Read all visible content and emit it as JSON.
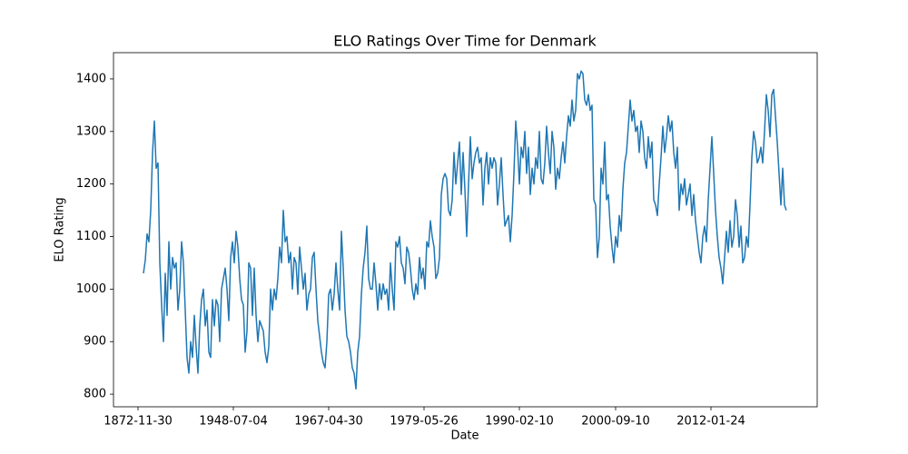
{
  "chart_data": {
    "type": "line",
    "title": "ELO Ratings Over Time for Denmark",
    "xlabel": "Date",
    "ylabel": "ELO Rating",
    "x": [
      6,
      8,
      10,
      12,
      14,
      16,
      18,
      20,
      22,
      24,
      26,
      28,
      30,
      32,
      34,
      36,
      38,
      40,
      42,
      44,
      46,
      48,
      50,
      52,
      54,
      56,
      58,
      60,
      62,
      64,
      66,
      68,
      70,
      72,
      74,
      76,
      78,
      80,
      82,
      84,
      86,
      88,
      90,
      92,
      94,
      96,
      98,
      100,
      102,
      104,
      106,
      108,
      110,
      112,
      114,
      116,
      118,
      120,
      122,
      124,
      126,
      128,
      130,
      132,
      134,
      136,
      138,
      140,
      142,
      144,
      146,
      148,
      150,
      152,
      154,
      156,
      158,
      160,
      162,
      164,
      166,
      168,
      170,
      172,
      174,
      176,
      178,
      180,
      182,
      184,
      186,
      188,
      190,
      192,
      194,
      196,
      198,
      200,
      202,
      204,
      206,
      208,
      210,
      212,
      214,
      216,
      218,
      220,
      222,
      224,
      226,
      228,
      230,
      232,
      234,
      236,
      238,
      240,
      242,
      244,
      246,
      248,
      250,
      252,
      254,
      256,
      258,
      260,
      262,
      264,
      266,
      268,
      270,
      272,
      274,
      276,
      278,
      280,
      282,
      284,
      286,
      288,
      290,
      292,
      294,
      296,
      298,
      300,
      302,
      304,
      306,
      308,
      310,
      312,
      314,
      316,
      318,
      320,
      322,
      324,
      326,
      328,
      330,
      332,
      334,
      336,
      338,
      340,
      342,
      344,
      346,
      348,
      350,
      352,
      354,
      356,
      358,
      360,
      362,
      364,
      366,
      368,
      370,
      372,
      374,
      376,
      378,
      380,
      382,
      384,
      386,
      388,
      390,
      392,
      394,
      396,
      398,
      400,
      402,
      404,
      406,
      408,
      410,
      412,
      414,
      416,
      418,
      420,
      422,
      424,
      426,
      428,
      430,
      432,
      434,
      436,
      438,
      440,
      442,
      444,
      446,
      448,
      450,
      452,
      454,
      456,
      458,
      460,
      462,
      464,
      466,
      468,
      470,
      472,
      474,
      476,
      478,
      480,
      482,
      484,
      486,
      488,
      490,
      492,
      494,
      496,
      498,
      500,
      502,
      504,
      506,
      508,
      510,
      512,
      514,
      516,
      518,
      520,
      522,
      524,
      526,
      528,
      530,
      532,
      534,
      536,
      538,
      540,
      542,
      544,
      546,
      548,
      550,
      552,
      554,
      556,
      558,
      560,
      562,
      564,
      566,
      568,
      570,
      572,
      574,
      576,
      578,
      580,
      582,
      584,
      586,
      588,
      590,
      592,
      594,
      596,
      598,
      600,
      602,
      604,
      606,
      608,
      610,
      612,
      614,
      616,
      618,
      620,
      622,
      624,
      626,
      628,
      630,
      632,
      634,
      636,
      638,
      640,
      642,
      644,
      646,
      648,
      650,
      652,
      654,
      656,
      658,
      660,
      662,
      664,
      666,
      668,
      670,
      672,
      674,
      676,
      678,
      680,
      682,
      684,
      686,
      688,
      690,
      692,
      694,
      696,
      698,
      700,
      702,
      704,
      706,
      708,
      710,
      712,
      714
    ],
    "series": [
      {
        "name": "Denmark",
        "color": "#1f77b4",
        "values": [
          1030,
          1055,
          1105,
          1090,
          1150,
          1260,
          1320,
          1230,
          1240,
          1050,
          970,
          900,
          1030,
          950,
          1090,
          1000,
          1060,
          1040,
          1050,
          960,
          1000,
          1090,
          1050,
          960,
          870,
          840,
          900,
          870,
          950,
          890,
          840,
          930,
          980,
          1000,
          930,
          960,
          880,
          870,
          980,
          930,
          980,
          970,
          900,
          1000,
          1020,
          1040,
          1000,
          940,
          1060,
          1090,
          1050,
          1110,
          1080,
          1020,
          980,
          970,
          880,
          920,
          1050,
          1040,
          950,
          1040,
          950,
          900,
          940,
          930,
          920,
          880,
          860,
          890,
          1000,
          960,
          1000,
          980,
          1020,
          1080,
          1050,
          1150,
          1090,
          1100,
          1050,
          1070,
          1000,
          1060,
          1050,
          990,
          1080,
          1040,
          1000,
          1030,
          960,
          990,
          1000,
          1060,
          1070,
          1000,
          940,
          910,
          880,
          860,
          850,
          900,
          990,
          1000,
          960,
          990,
          1050,
          1000,
          960,
          1110,
          1040,
          960,
          910,
          900,
          880,
          850,
          840,
          810,
          880,
          910,
          990,
          1040,
          1070,
          1120,
          1020,
          1000,
          1000,
          1050,
          1010,
          960,
          1010,
          980,
          1010,
          990,
          1000,
          960,
          1050,
          1000,
          960,
          1090,
          1080,
          1100,
          1050,
          1040,
          1010,
          1080,
          1070,
          1040,
          1000,
          980,
          1010,
          990,
          1060,
          1020,
          1040,
          1000,
          1090,
          1080,
          1130,
          1100,
          1080,
          1020,
          1030,
          1060,
          1180,
          1210,
          1220,
          1210,
          1150,
          1140,
          1170,
          1260,
          1200,
          1240,
          1280,
          1180,
          1260,
          1190,
          1100,
          1200,
          1290,
          1210,
          1240,
          1260,
          1270,
          1240,
          1250,
          1160,
          1230,
          1260,
          1200,
          1250,
          1230,
          1250,
          1240,
          1160,
          1200,
          1250,
          1180,
          1120,
          1130,
          1140,
          1090,
          1140,
          1220,
          1320,
          1270,
          1200,
          1270,
          1250,
          1300,
          1220,
          1270,
          1180,
          1230,
          1200,
          1250,
          1230,
          1300,
          1210,
          1200,
          1240,
          1310,
          1260,
          1220,
          1300,
          1270,
          1190,
          1230,
          1210,
          1250,
          1280,
          1240,
          1290,
          1330,
          1310,
          1360,
          1320,
          1340,
          1410,
          1400,
          1415,
          1410,
          1360,
          1350,
          1370,
          1340,
          1350,
          1170,
          1160,
          1060,
          1100,
          1230,
          1200,
          1280,
          1170,
          1180,
          1120,
          1080,
          1050,
          1100,
          1080,
          1140,
          1110,
          1190,
          1240,
          1260,
          1310,
          1360,
          1320,
          1340,
          1300,
          1310,
          1260,
          1320,
          1300,
          1250,
          1230,
          1290,
          1250,
          1280,
          1170,
          1160,
          1140,
          1200,
          1250,
          1310,
          1260,
          1290,
          1330,
          1300,
          1320,
          1260,
          1230,
          1270,
          1150,
          1200,
          1180,
          1210,
          1160,
          1180,
          1200,
          1140,
          1180,
          1130,
          1100,
          1070,
          1050,
          1100,
          1120,
          1090,
          1170,
          1230,
          1290,
          1220,
          1150,
          1100,
          1060,
          1040,
          1010,
          1060,
          1110,
          1070,
          1130,
          1080,
          1100,
          1170,
          1140,
          1080,
          1120,
          1050,
          1060,
          1100,
          1080,
          1160,
          1250,
          1300,
          1280,
          1240,
          1250,
          1270,
          1240,
          1300,
          1370,
          1340,
          1290,
          1370,
          1380,
          1330,
          1280,
          1220,
          1160,
          1230,
          1160,
          1150
        ]
      }
    ],
    "xlim": [
      -27,
      748
    ],
    "xticks": [
      {
        "value": 0,
        "label": "1872-11-30"
      },
      {
        "value": 105,
        "label": "1948-07-04"
      },
      {
        "value": 210,
        "label": "1967-04-30"
      },
      {
        "value": 315,
        "label": "1979-05-26"
      },
      {
        "value": 420,
        "label": "1990-02-10"
      },
      {
        "value": 526,
        "label": "2000-09-10"
      },
      {
        "value": 631,
        "label": "2012-01-24"
      }
    ],
    "ylim": [
      776,
      1450
    ],
    "yticks": [
      800,
      900,
      1000,
      1100,
      1200,
      1300,
      1400
    ]
  }
}
